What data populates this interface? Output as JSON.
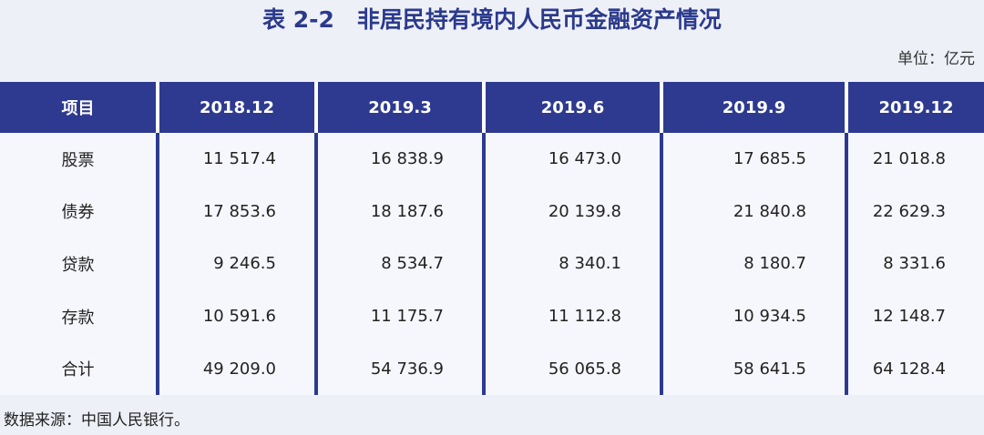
{
  "header": {
    "title": "表 2-2　非居民持有境内人民币金融资产情况",
    "unit": "单位：亿元"
  },
  "table": {
    "columns": [
      "项目",
      "2018.12",
      "2019.3",
      "2019.6",
      "2019.9",
      "2019.12"
    ],
    "rows": [
      [
        "股票",
        "11 517.4",
        "16 838.9",
        "16 473.0",
        "17 685.5",
        "21 018.8"
      ],
      [
        "债券",
        "17 853.6",
        "18 187.6",
        "20 139.8",
        "21 840.8",
        "22 629.3"
      ],
      [
        "贷款",
        "9 246.5",
        "8 534.7",
        "8 340.1",
        "8 180.7",
        "8 331.6"
      ],
      [
        "存款",
        "10 591.6",
        "11 175.7",
        "11 112.8",
        "10 934.5",
        "12 148.7"
      ],
      [
        "合计",
        "49 209.0",
        "54 736.9",
        "56 065.8",
        "58 641.5",
        "64 128.4"
      ]
    ]
  },
  "footer": {
    "source": "数据来源：中国人民银行。"
  }
}
